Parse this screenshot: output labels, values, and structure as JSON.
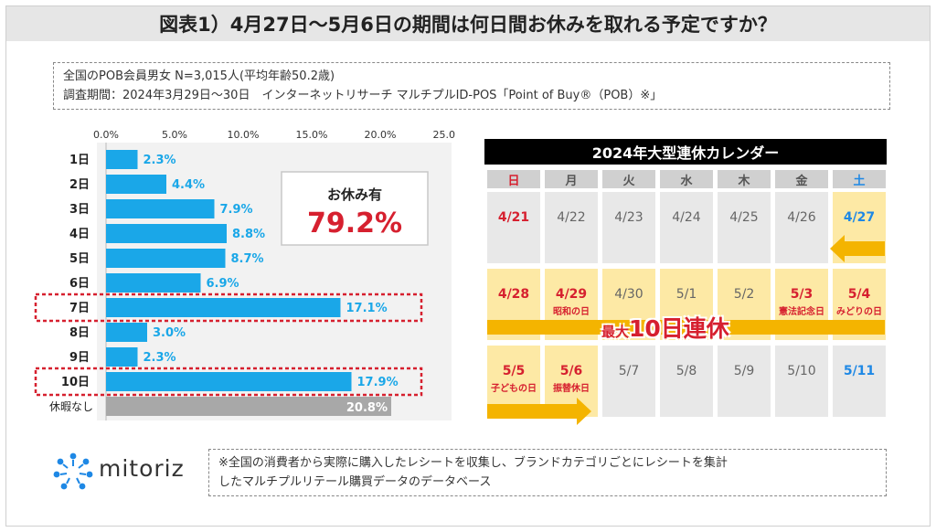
{
  "title": "図表1）4月27日～5月6日の期間は何日間お休みを取れる予定ですか？",
  "survey": {
    "line1": "全国のPOB会員男女 N=3,015人(平均年齢50.2歳)",
    "line2": "調査期間：2024年3月29日～30日　インターネットリサーチ マルチプルID-POS「Point of Buy®（POB）※」"
  },
  "chart_data": {
    "type": "bar",
    "orientation": "horizontal",
    "categories": [
      "1日",
      "2日",
      "3日",
      "4日",
      "5日",
      "6日",
      "7日",
      "8日",
      "9日",
      "10日",
      "休暇なし"
    ],
    "values": [
      2.3,
      4.4,
      7.9,
      8.8,
      8.7,
      6.9,
      17.1,
      3.0,
      2.3,
      17.9,
      20.8
    ],
    "value_labels": [
      "2.3%",
      "4.4%",
      "7.9%",
      "8.8%",
      "8.7%",
      "6.9%",
      "17.1%",
      "3.0%",
      "2.3%",
      "17.9%",
      "20.8%"
    ],
    "xlim": [
      0,
      25
    ],
    "x_ticks": [
      "0.0%",
      "5.0%",
      "10.0%",
      "15.0%",
      "20.0%",
      "25.0%"
    ],
    "bar_color": "#1aa7e8",
    "none_color": "#a8a8a8",
    "highlighted": [
      "7日",
      "10日"
    ],
    "callout": {
      "label": "お休み有",
      "value": "79.2%"
    }
  },
  "calendar": {
    "title": "2024年大型連休カレンダー",
    "weekdays": [
      "日",
      "月",
      "火",
      "水",
      "木",
      "金",
      "土"
    ],
    "weeks": [
      [
        {
          "date": "4/21",
          "note": "",
          "style": "red",
          "bg": "gray"
        },
        {
          "date": "4/22",
          "note": "",
          "style": "",
          "bg": "gray"
        },
        {
          "date": "4/23",
          "note": "",
          "style": "",
          "bg": "gray"
        },
        {
          "date": "4/24",
          "note": "",
          "style": "",
          "bg": "gray"
        },
        {
          "date": "4/25",
          "note": "",
          "style": "",
          "bg": "gray"
        },
        {
          "date": "4/26",
          "note": "",
          "style": "",
          "bg": "gray"
        },
        {
          "date": "4/27",
          "note": "",
          "style": "blue",
          "bg": "yellow"
        }
      ],
      [
        {
          "date": "4/28",
          "note": "",
          "style": "red",
          "bg": "yellow"
        },
        {
          "date": "4/29",
          "note": "昭和の日",
          "style": "red",
          "bg": "yellow"
        },
        {
          "date": "4/30",
          "note": "",
          "style": "",
          "bg": "yellow"
        },
        {
          "date": "5/1",
          "note": "",
          "style": "",
          "bg": "yellow"
        },
        {
          "date": "5/2",
          "note": "",
          "style": "",
          "bg": "yellow"
        },
        {
          "date": "5/3",
          "note": "憲法記念日",
          "style": "red",
          "bg": "yellow"
        },
        {
          "date": "5/4",
          "note": "みどりの日",
          "style": "red",
          "bg": "yellow"
        }
      ],
      [
        {
          "date": "5/5",
          "note": "子どもの日",
          "style": "red",
          "bg": "yellow"
        },
        {
          "date": "5/6",
          "note": "振替休日",
          "style": "red",
          "bg": "yellow"
        },
        {
          "date": "5/7",
          "note": "",
          "style": "",
          "bg": "gray"
        },
        {
          "date": "5/8",
          "note": "",
          "style": "",
          "bg": "gray"
        },
        {
          "date": "5/9",
          "note": "",
          "style": "",
          "bg": "gray"
        },
        {
          "date": "5/10",
          "note": "",
          "style": "",
          "bg": "gray"
        },
        {
          "date": "5/11",
          "note": "",
          "style": "blue",
          "bg": "gray"
        }
      ]
    ],
    "banner_small": "最大",
    "banner_large": "10日連休",
    "colors": {
      "arrow": "#f4b400",
      "yellow": "#fde9a5",
      "red": "#d6202f",
      "blue": "#1e88e5"
    }
  },
  "footer": {
    "logo_text": "mitoriz",
    "note_line1": "※全国の消費者から実際に購入したレシートを収集し、ブランドカテゴリごとにレシートを集計",
    "note_line2": "したマルチプルリテール購買データのデータベース"
  }
}
